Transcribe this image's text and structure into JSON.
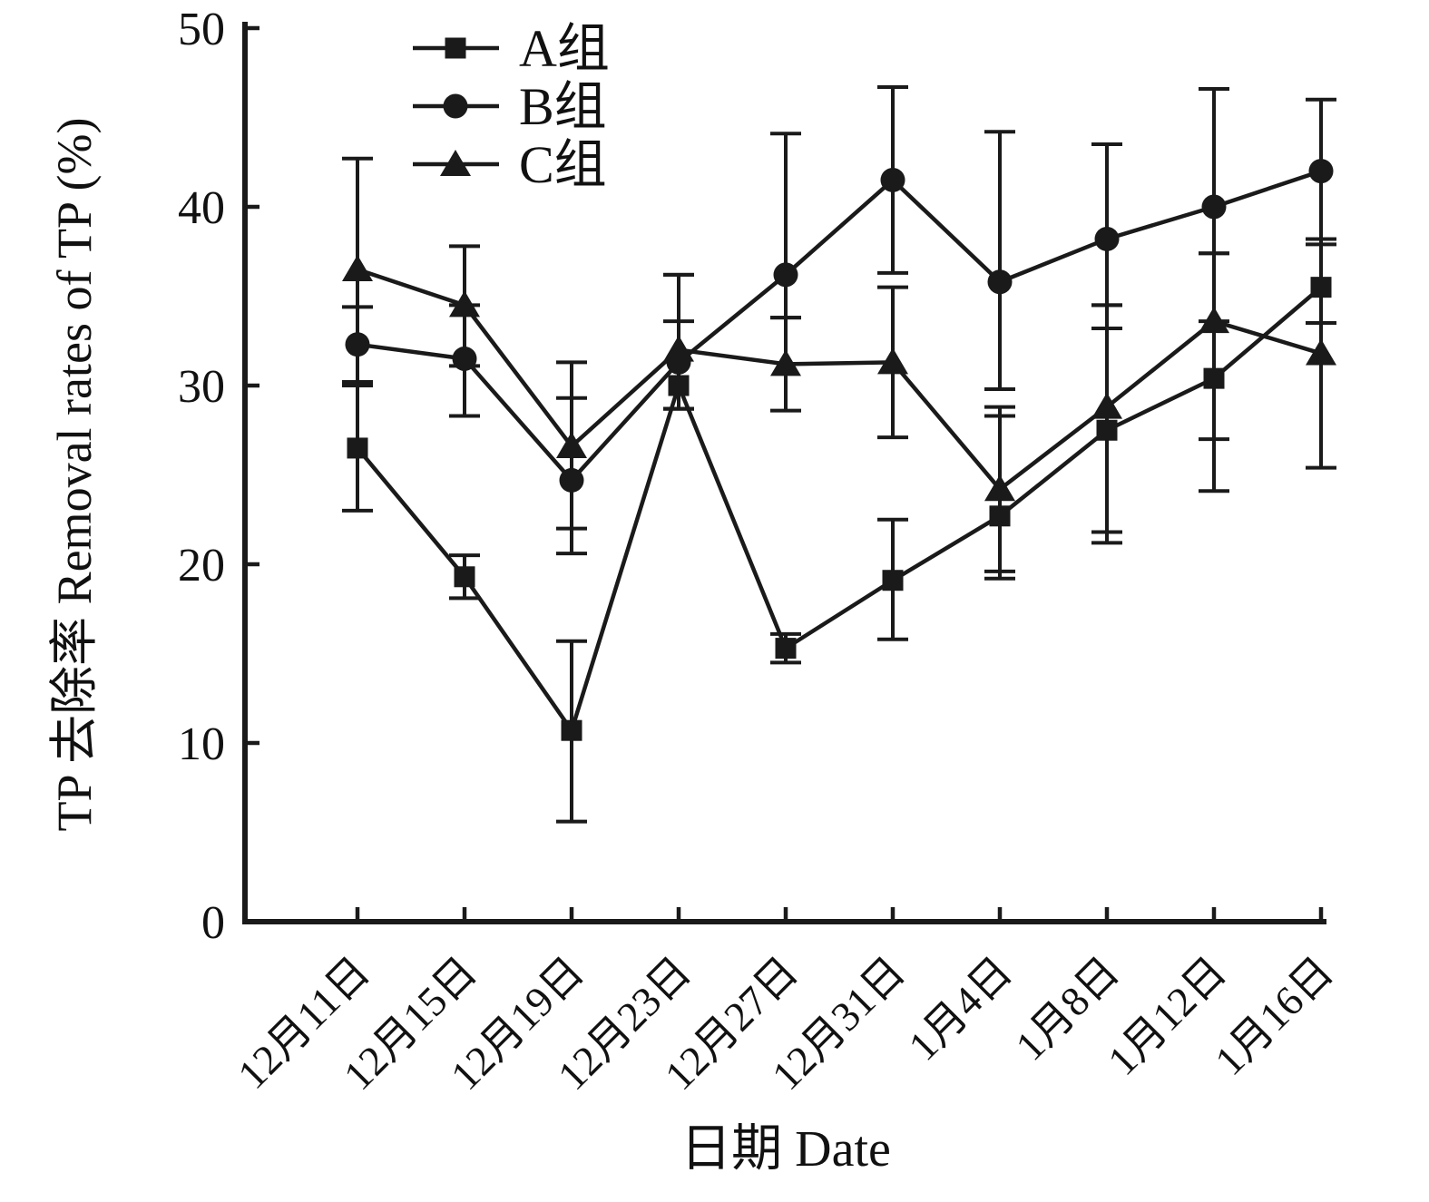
{
  "chart_data": {
    "type": "line",
    "title": "",
    "xlabel": "日期 Date",
    "ylabel": "TP 去除率 Removal rates of TP (%)",
    "ylim": [
      0,
      50
    ],
    "yticks": [
      0,
      10,
      20,
      30,
      40,
      50
    ],
    "grid": false,
    "legend_position": "top-inside-left",
    "line_color": "#1a1a1a",
    "categories": [
      "12月11日",
      "12月15日",
      "12月19日",
      "12月23日",
      "12月27日",
      "12月31日",
      "1月4日",
      "1月8日",
      "1月12日",
      "1月16日"
    ],
    "series": [
      {
        "name": "A组",
        "marker": "square",
        "color": "#1a1a1a",
        "values": [
          26.5,
          19.3,
          10.7,
          30.0,
          15.3,
          19.1,
          22.7,
          27.5,
          30.4,
          35.5
        ],
        "err_up": [
          3.5,
          1.2,
          5.0,
          3.6,
          0.8,
          3.4,
          5.6,
          7.0,
          7.0,
          2.7
        ],
        "err_down": [
          3.5,
          1.2,
          5.1,
          1.3,
          0.8,
          3.3,
          3.5,
          6.3,
          6.3,
          2.0
        ]
      },
      {
        "name": "B组",
        "marker": "circle",
        "color": "#1a1a1a",
        "values": [
          32.3,
          31.5,
          24.7,
          31.3,
          36.2,
          41.5,
          35.8,
          38.2,
          40.0,
          42.0
        ],
        "err_up": [
          2.1,
          3.0,
          4.6,
          4.9,
          7.9,
          5.2,
          8.4,
          5.3,
          6.6,
          4.0
        ],
        "err_down": [
          2.1,
          3.2,
          4.1,
          2.6,
          2.4,
          5.2,
          6.0,
          5.0,
          6.4,
          4.1
        ]
      },
      {
        "name": "C组",
        "marker": "triangle",
        "color": "#1a1a1a",
        "values": [
          36.5,
          34.5,
          26.6,
          32.0,
          31.2,
          31.3,
          24.2,
          28.8,
          33.6,
          31.8
        ],
        "err_up": [
          6.2,
          3.3,
          4.7,
          4.2,
          2.6,
          4.2,
          4.6,
          5.7,
          3.8,
          6.4
        ],
        "err_down": [
          6.3,
          3.4,
          4.6,
          3.3,
          2.6,
          4.2,
          4.6,
          7.0,
          6.6,
          6.4
        ]
      }
    ]
  }
}
